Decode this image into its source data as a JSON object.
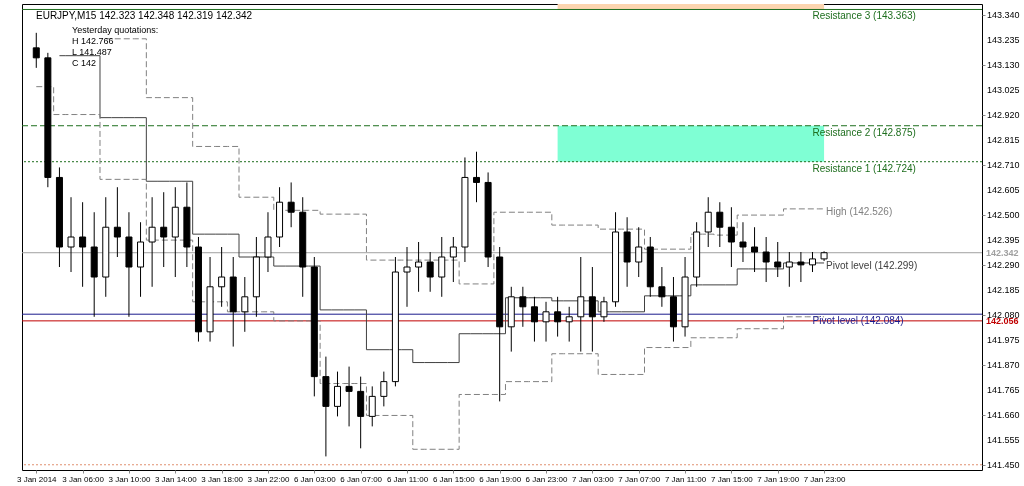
{
  "chart_data": {
    "type": "candlestick",
    "title": "EURJPY,M15  142.323 142.348 142.319 142.342",
    "categories": [
      "3 Jan 2014",
      null,
      null,
      null,
      "3 Jan 06:00",
      null,
      null,
      null,
      "3 Jan 10:00",
      null,
      null,
      null,
      "3 Jan 14:00",
      null,
      null,
      null,
      "3 Jan 18:00",
      null,
      null,
      null,
      "3 Jan 22:00",
      null,
      null,
      null,
      "6 Jan 03:00",
      null,
      null,
      null,
      "6 Jan 07:00",
      null,
      null,
      null,
      "6 Jan 11:00",
      null,
      null,
      null,
      "6 Jan 15:00",
      null,
      null,
      null,
      "6 Jan 19:00",
      null,
      null,
      null,
      "6 Jan 23:00",
      null,
      null,
      null,
      "7 Jan 03:00",
      null,
      null,
      null,
      "7 Jan 07:00",
      null,
      null,
      null,
      "7 Jan 11:00",
      null,
      null,
      null,
      "7 Jan 15:00",
      null,
      null,
      null,
      "7 Jan 19:00",
      null,
      null,
      null,
      "7 Jan 23:00"
    ],
    "ohlc": [
      [
        143.202,
        143.265,
        143.118,
        143.16
      ],
      [
        143.16,
        143.181,
        142.617,
        142.658
      ],
      [
        142.658,
        142.7,
        142.282,
        142.366
      ],
      [
        142.366,
        142.575,
        142.261,
        142.408
      ],
      [
        142.408,
        142.554,
        142.199,
        142.366
      ],
      [
        142.366,
        142.512,
        142.073,
        142.24
      ],
      [
        142.24,
        142.575,
        142.157,
        142.449
      ],
      [
        142.449,
        142.617,
        142.324,
        142.408
      ],
      [
        142.408,
        142.512,
        142.073,
        142.282
      ],
      [
        142.282,
        142.47,
        142.157,
        142.387
      ],
      [
        142.387,
        142.575,
        142.199,
        142.449
      ],
      [
        142.449,
        142.596,
        142.282,
        142.408
      ],
      [
        142.408,
        142.617,
        142.24,
        142.533
      ],
      [
        142.533,
        142.637,
        142.282,
        142.366
      ],
      [
        142.366,
        142.408,
        141.969,
        142.01
      ],
      [
        142.01,
        142.324,
        141.969,
        142.199
      ],
      [
        142.199,
        142.366,
        142.115,
        142.24
      ],
      [
        142.24,
        142.324,
        141.948,
        142.094
      ],
      [
        142.094,
        142.24,
        142.01,
        142.157
      ],
      [
        142.157,
        142.408,
        142.073,
        142.324
      ],
      [
        142.324,
        142.512,
        142.261,
        142.408
      ],
      [
        142.408,
        142.617,
        142.366,
        142.554
      ],
      [
        142.554,
        142.637,
        142.449,
        142.512
      ],
      [
        142.512,
        142.575,
        142.157,
        142.282
      ],
      [
        142.282,
        142.324,
        141.739,
        141.822
      ],
      [
        141.822,
        141.906,
        141.487,
        141.697
      ],
      [
        141.697,
        141.843,
        141.655,
        141.781
      ],
      [
        141.781,
        141.864,
        141.613,
        141.76
      ],
      [
        141.76,
        141.822,
        141.521,
        141.655
      ],
      [
        141.655,
        141.781,
        141.613,
        141.739
      ],
      [
        141.739,
        141.843,
        141.697,
        141.801
      ],
      [
        141.801,
        142.324,
        141.781,
        142.261
      ],
      [
        142.261,
        142.366,
        142.115,
        142.282
      ],
      [
        142.282,
        142.387,
        142.178,
        142.303
      ],
      [
        142.303,
        142.345,
        142.178,
        142.24
      ],
      [
        142.24,
        142.408,
        142.157,
        142.324
      ],
      [
        142.324,
        142.408,
        142.219,
        142.366
      ],
      [
        142.366,
        142.742,
        142.303,
        142.658
      ],
      [
        142.658,
        142.766,
        142.554,
        142.637
      ],
      [
        142.637,
        142.679,
        142.282,
        142.324
      ],
      [
        142.324,
        142.366,
        141.718,
        142.031
      ],
      [
        142.031,
        142.199,
        141.927,
        142.157
      ],
      [
        142.157,
        142.199,
        142.031,
        142.115
      ],
      [
        142.115,
        142.157,
        141.969,
        142.052
      ],
      [
        142.052,
        142.136,
        141.969,
        142.094
      ],
      [
        142.094,
        142.157,
        141.99,
        142.052
      ],
      [
        142.052,
        142.115,
        141.969,
        142.073
      ],
      [
        142.073,
        142.324,
        141.927,
        142.157
      ],
      [
        142.157,
        142.282,
        141.927,
        142.073
      ],
      [
        142.073,
        142.157,
        142.052,
        142.136
      ],
      [
        142.136,
        142.512,
        142.115,
        142.429
      ],
      [
        142.429,
        142.491,
        142.199,
        142.303
      ],
      [
        142.303,
        142.449,
        142.24,
        142.366
      ],
      [
        142.366,
        142.408,
        142.157,
        142.199
      ],
      [
        142.199,
        142.282,
        142.115,
        142.157
      ],
      [
        142.157,
        142.24,
        141.969,
        142.031
      ],
      [
        142.031,
        142.324,
        141.99,
        142.24
      ],
      [
        142.24,
        142.47,
        142.199,
        142.429
      ],
      [
        142.429,
        142.575,
        142.366,
        142.512
      ],
      [
        142.512,
        142.554,
        142.366,
        142.449
      ],
      [
        142.449,
        142.533,
        142.282,
        142.387
      ],
      [
        142.387,
        142.47,
        142.303,
        142.366
      ],
      [
        142.366,
        142.449,
        142.261,
        142.345
      ],
      [
        142.345,
        142.408,
        142.219,
        142.303
      ],
      [
        142.303,
        142.387,
        142.24,
        142.282
      ],
      [
        142.282,
        142.345,
        142.199,
        142.303
      ],
      [
        142.303,
        142.345,
        142.219,
        142.291
      ],
      [
        142.291,
        142.345,
        142.261,
        142.316
      ],
      [
        142.316,
        142.348,
        142.307,
        142.342
      ]
    ],
    "series": [
      {
        "type": "step",
        "name": "High (142.526)",
        "color": "#808080",
        "line_style": "dashed",
        "values": [
          null,
          null,
          null,
          null,
          null,
          null,
          143.24,
          143.24,
          143.24,
          143.24,
          142.993,
          142.993,
          142.993,
          142.993,
          142.788,
          142.788,
          142.788,
          142.788,
          142.575,
          142.575,
          142.575,
          142.52,
          142.52,
          142.52,
          142.52,
          142.504,
          142.504,
          142.504,
          142.504,
          142.311,
          142.311,
          142.311,
          142.311,
          142.311,
          142.311,
          142.311,
          142.311,
          142.211,
          142.211,
          142.211,
          142.512,
          142.512,
          142.512,
          142.512,
          142.512,
          142.458,
          142.458,
          142.458,
          142.458,
          142.441,
          142.441,
          142.441,
          142.441,
          142.357,
          142.357,
          142.357,
          142.357,
          142.42,
          142.42,
          142.416,
          142.416,
          142.5,
          142.5,
          142.5,
          142.5,
          142.526,
          142.526,
          142.526,
          142.526
        ]
      },
      {
        "type": "step",
        "name": "Pivot level (142.299)",
        "color": "#404040",
        "line_style": "solid",
        "values": [
          null,
          null,
          143.169,
          143.169,
          143.169,
          143.169,
          142.909,
          142.909,
          142.909,
          142.909,
          142.642,
          142.642,
          142.642,
          142.642,
          142.42,
          142.42,
          142.42,
          142.42,
          142.324,
          142.324,
          142.324,
          142.286,
          142.286,
          142.286,
          142.286,
          142.102,
          142.102,
          142.102,
          142.102,
          141.935,
          141.935,
          141.935,
          141.935,
          141.881,
          141.881,
          141.881,
          141.881,
          142.002,
          142.002,
          142.002,
          142.002,
          142.153,
          142.153,
          142.153,
          142.153,
          142.14,
          142.14,
          142.14,
          142.14,
          142.094,
          142.094,
          142.094,
          142.094,
          142.161,
          142.161,
          142.161,
          142.161,
          142.207,
          142.207,
          142.207,
          142.207,
          142.274,
          142.274,
          142.274,
          142.274,
          142.299,
          142.299,
          142.299,
          142.299
        ]
      },
      {
        "type": "step",
        "color": "#808080",
        "line_style": "dashed",
        "values": [
          143.039,
          143.039,
          142.922,
          142.922,
          142.922,
          142.922,
          142.65,
          142.65,
          142.65,
          142.65,
          142.395,
          142.395,
          142.395,
          142.395,
          142.136,
          142.136,
          142.136,
          142.094,
          142.094,
          142.094,
          142.094,
          142.056,
          142.056,
          142.056,
          142.056,
          141.793,
          141.793,
          141.793,
          141.793,
          141.659,
          141.659,
          141.659,
          141.659,
          141.517,
          141.517,
          141.517,
          141.517,
          141.747,
          141.747,
          141.747,
          141.747,
          141.801,
          141.801,
          141.801,
          141.801,
          141.918,
          141.918,
          141.918,
          141.918,
          141.831,
          141.831,
          141.831,
          141.831,
          141.944,
          141.944,
          141.944,
          141.944,
          141.985,
          141.985,
          141.985,
          141.985,
          142.023,
          142.023,
          142.023,
          142.023,
          142.073,
          142.073,
          142.073,
          142.073
        ]
      }
    ],
    "ylim": [
      141.43,
      143.386
    ],
    "yticks": [
      {
        "value": 141.45,
        "label": "141.450"
      },
      {
        "value": 141.555,
        "label": "141.555"
      },
      {
        "value": 141.66,
        "label": "141.660"
      },
      {
        "value": 141.765,
        "label": "141.765"
      },
      {
        "value": 141.87,
        "label": "141.870"
      },
      {
        "value": 141.975,
        "label": "141.975"
      },
      {
        "value": 142.08,
        "label": "142.080"
      },
      {
        "value": 142.185,
        "label": "142.185"
      },
      {
        "value": 142.29,
        "label": "142.290"
      },
      {
        "value": 142.395,
        "label": "142.395"
      },
      {
        "value": 142.5,
        "label": "142.500"
      },
      {
        "value": 142.605,
        "label": "142.605"
      },
      {
        "value": 142.71,
        "label": "142.710"
      },
      {
        "value": 142.815,
        "label": "142.815"
      },
      {
        "value": 142.92,
        "label": "142.920"
      },
      {
        "value": 143.025,
        "label": "143.025"
      },
      {
        "value": 143.13,
        "label": "143.130"
      },
      {
        "value": 143.235,
        "label": "143.235"
      },
      {
        "value": 143.34,
        "label": "143.340"
      }
    ],
    "ref_lines": [
      {
        "axis": "y",
        "value": 143.363,
        "label": "Resistance 3 (143.363)",
        "color": "#1e6e1e",
        "line_style": "solid"
      },
      {
        "axis": "y",
        "value": 142.875,
        "label": "Resistance 2 (142.875)",
        "color": "#1e6e1e",
        "line_style": "dashed"
      },
      {
        "axis": "y",
        "value": 142.724,
        "label": "Resistance 1 (142.724)",
        "color": "#1e6e1e",
        "line_style": "dotted"
      },
      {
        "axis": "y",
        "value": 142.084,
        "label": "Pivot level (142.084)",
        "color": "#1a1a8c",
        "line_style": "solid"
      },
      {
        "axis": "y",
        "value": 142.342,
        "label": "142.342",
        "color": "#a0a0a0",
        "line_style": "solid"
      },
      {
        "axis": "y",
        "value": 142.056,
        "label": "142.056",
        "color": "#c00000",
        "line_style": "solid"
      },
      {
        "axis": "y",
        "value": 141.452,
        "color": "#e09070",
        "line_style": "dotted"
      }
    ],
    "bands": [
      {
        "axis": "y",
        "from": 142.724,
        "to": 142.875,
        "color": "#7fffd4"
      },
      {
        "axis": "y",
        "from": 143.363,
        "to": 143.386,
        "color": "#fcd5b0"
      }
    ],
    "annotations": [
      "Yesterday quotations:",
      "H 142.766",
      "L 141.487",
      "C 142"
    ],
    "grid": false
  }
}
